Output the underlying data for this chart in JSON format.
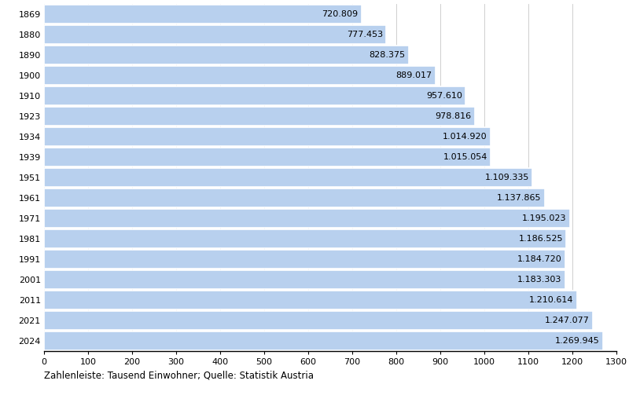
{
  "years": [
    "1869",
    "1880",
    "1890",
    "1900",
    "1910",
    "1923",
    "1934",
    "1939",
    "1951",
    "1961",
    "1971",
    "1981",
    "1991",
    "2001",
    "2011",
    "2021",
    "2024"
  ],
  "values": [
    720.809,
    777.453,
    828.375,
    889.017,
    957.61,
    978.816,
    1014.92,
    1015.054,
    1109.335,
    1137.865,
    1195.023,
    1186.525,
    1184.72,
    1183.303,
    1210.614,
    1247.077,
    1269.945
  ],
  "labels": [
    "720.809",
    "777.453",
    "828.375",
    "889.017",
    "957.610",
    "978.816",
    "1.014.920",
    "1.015.054",
    "1.109.335",
    "1.137.865",
    "1.195.023",
    "1.186.525",
    "1.184.720",
    "1.183.303",
    "1.210.614",
    "1.247.077",
    "1.269.945"
  ],
  "bar_color": "#b8d0ee",
  "bar_edge_color": "#ffffff",
  "background_color": "#ffffff",
  "xlabel": "Zahlenleiste: Tausend Einwohner; Quelle: Statistik Austria",
  "xlim": [
    0,
    1300
  ],
  "xticks": [
    0,
    100,
    200,
    300,
    400,
    500,
    600,
    700,
    800,
    900,
    1000,
    1100,
    1200,
    1300
  ],
  "grid_color": "#c8c8c8",
  "text_color": "#000000",
  "label_fontsize": 8,
  "tick_fontsize": 8,
  "xlabel_fontsize": 8.5,
  "bar_height": 0.92
}
